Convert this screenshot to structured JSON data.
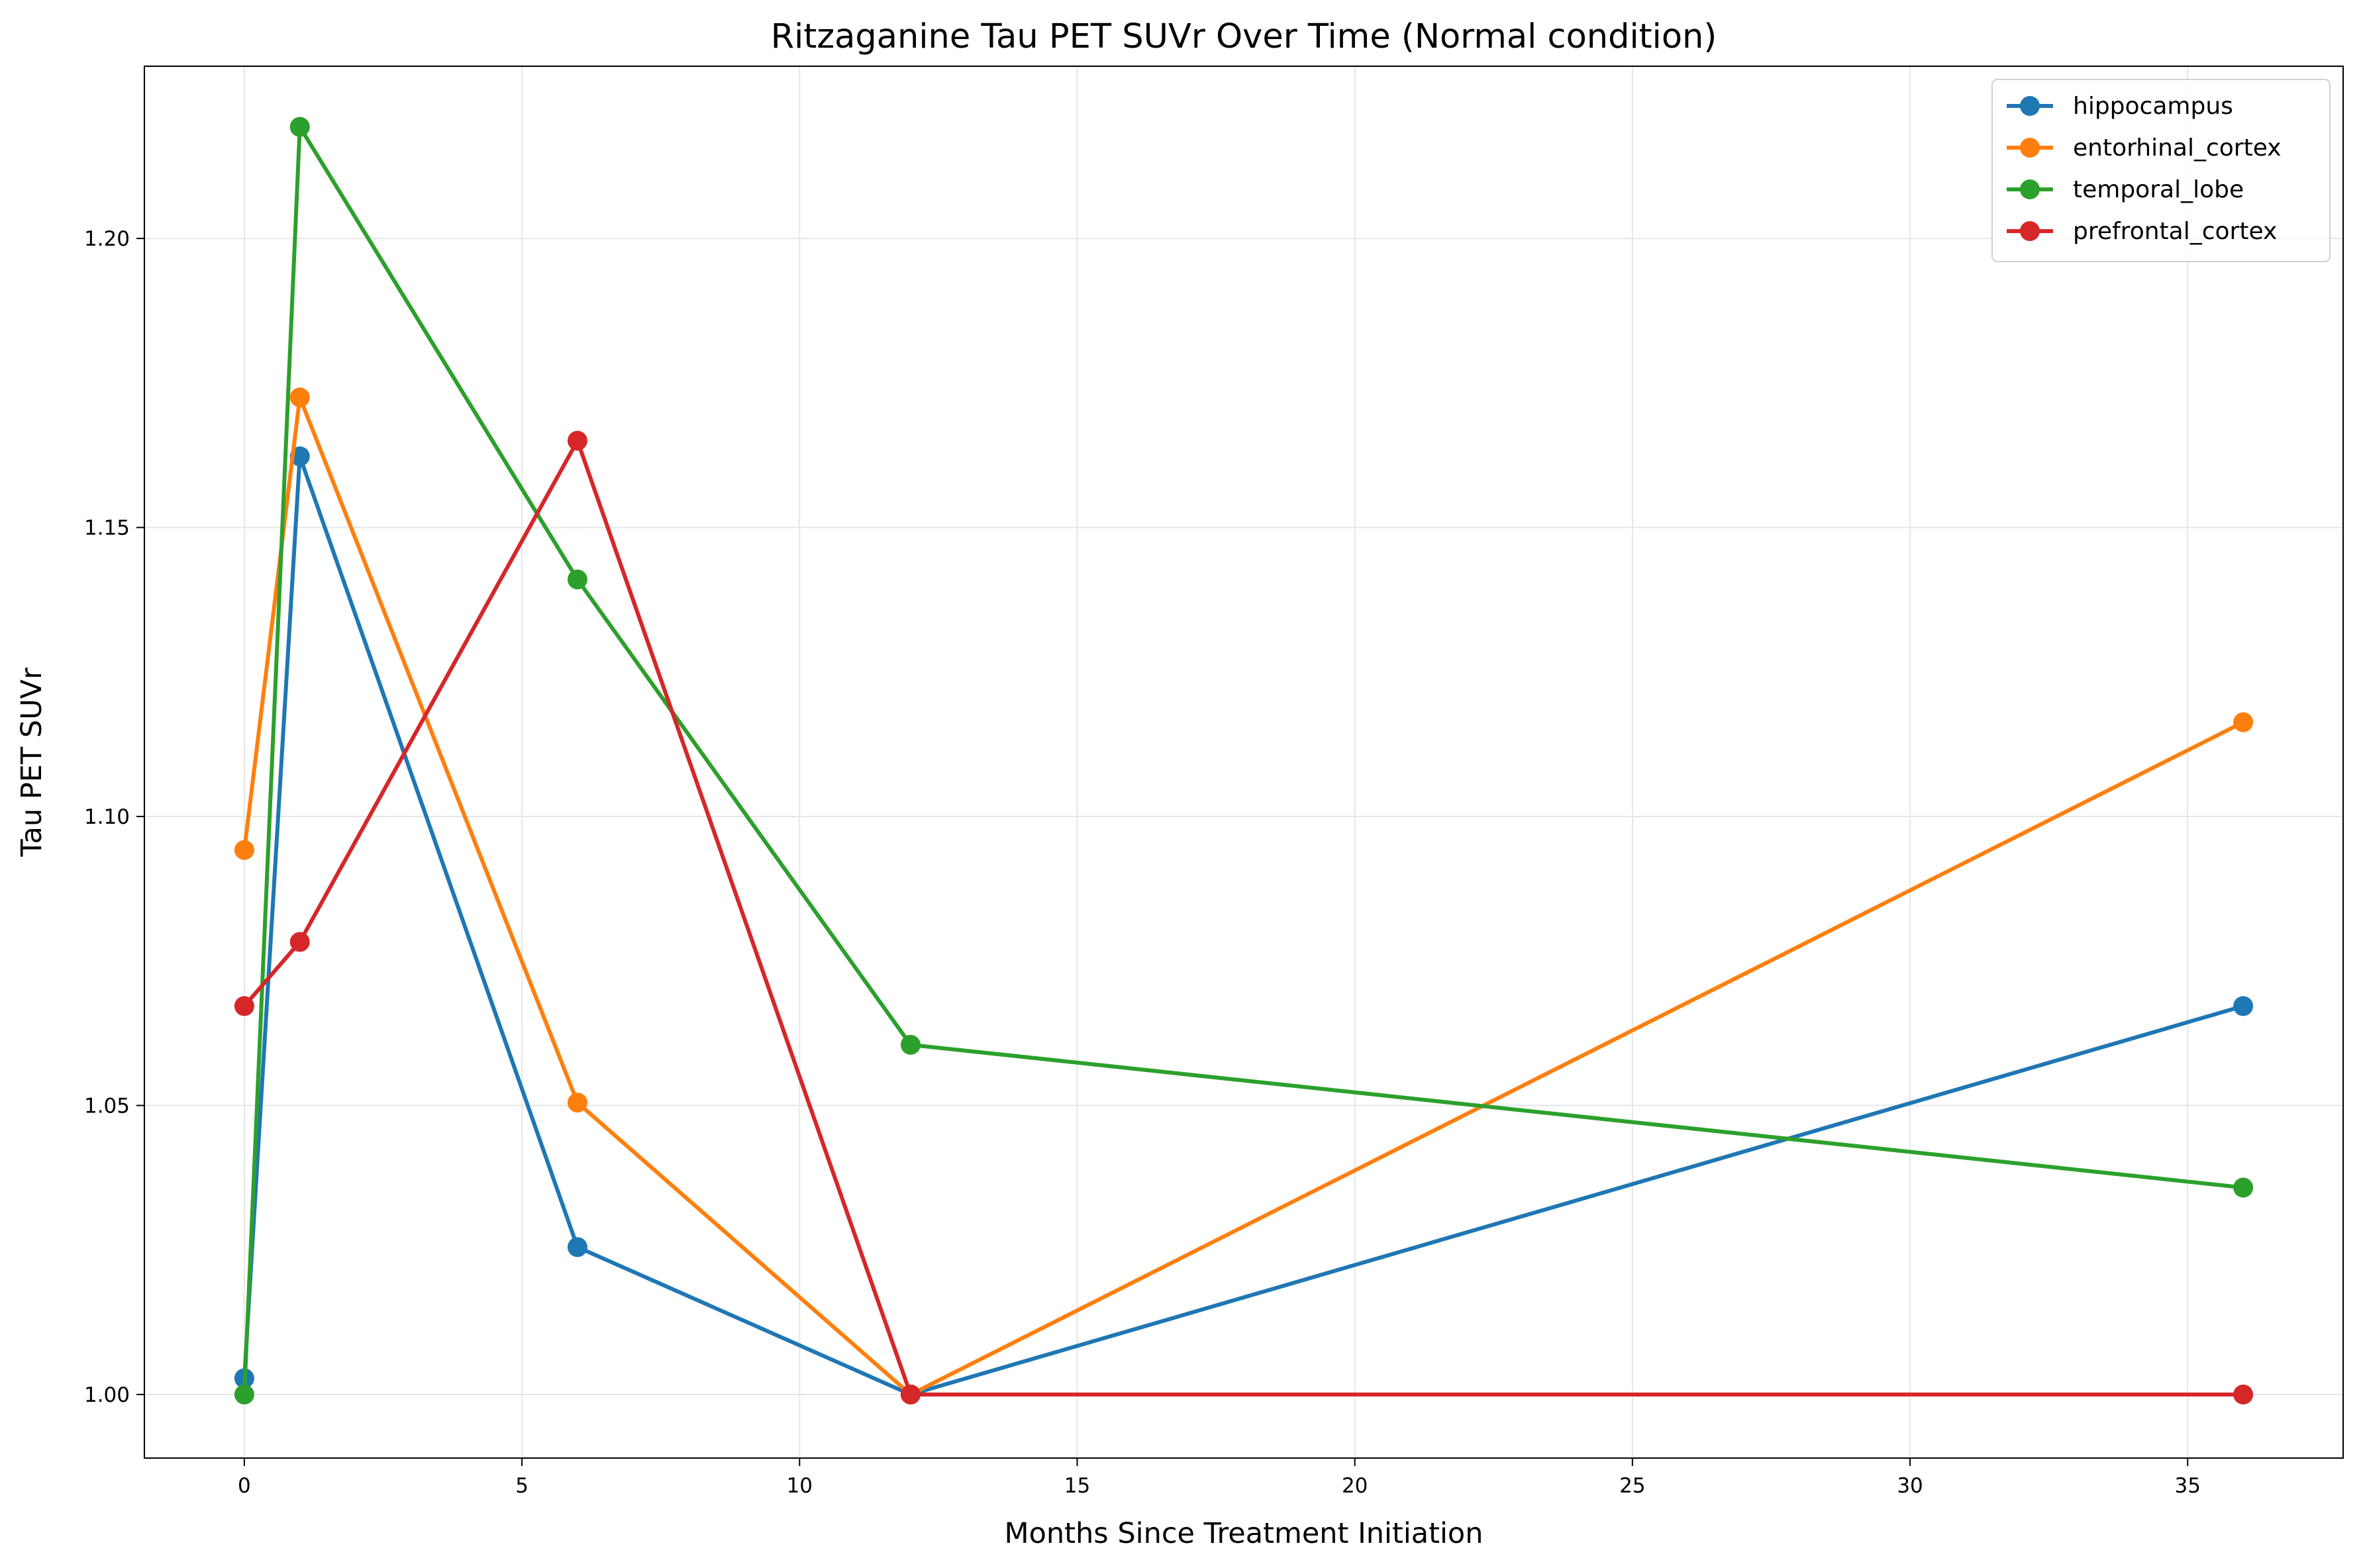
{
  "chart_data": {
    "type": "line",
    "title": "Ritzaganine Tau PET SUVr Over Time (Normal condition)",
    "xlabel": "Months Since Treatment Initiation",
    "ylabel": "Tau PET SUVr",
    "xlim": [
      -1.8,
      37.8
    ],
    "ylim": [
      0.989,
      1.2298
    ],
    "xticks": [
      0,
      5,
      10,
      15,
      20,
      25,
      30,
      35
    ],
    "yticks": [
      1.0,
      1.05,
      1.1,
      1.15,
      1.2
    ],
    "ytick_labels": [
      "1.00",
      "1.05",
      "1.10",
      "1.15",
      "1.20"
    ],
    "grid": true,
    "legend_position": "top-right",
    "x": [
      0,
      1,
      6,
      12,
      36
    ],
    "series": [
      {
        "name": "hippocampus",
        "color": "#1f77b4",
        "values": [
          1.0028,
          1.1623,
          1.0255,
          1.0,
          1.0672
        ]
      },
      {
        "name": "entorhinal_cortex",
        "color": "#ff7f0e",
        "values": [
          1.0942,
          1.1725,
          1.0505,
          1.0,
          1.1163
        ]
      },
      {
        "name": "temporal_lobe",
        "color": "#2ca02c",
        "values": [
          1.0,
          1.2193,
          1.141,
          1.0605,
          1.0358
        ]
      },
      {
        "name": "prefrontal_cortex",
        "color": "#d62728",
        "values": [
          1.0672,
          1.0783,
          1.165,
          1.0,
          1.0
        ]
      }
    ]
  }
}
